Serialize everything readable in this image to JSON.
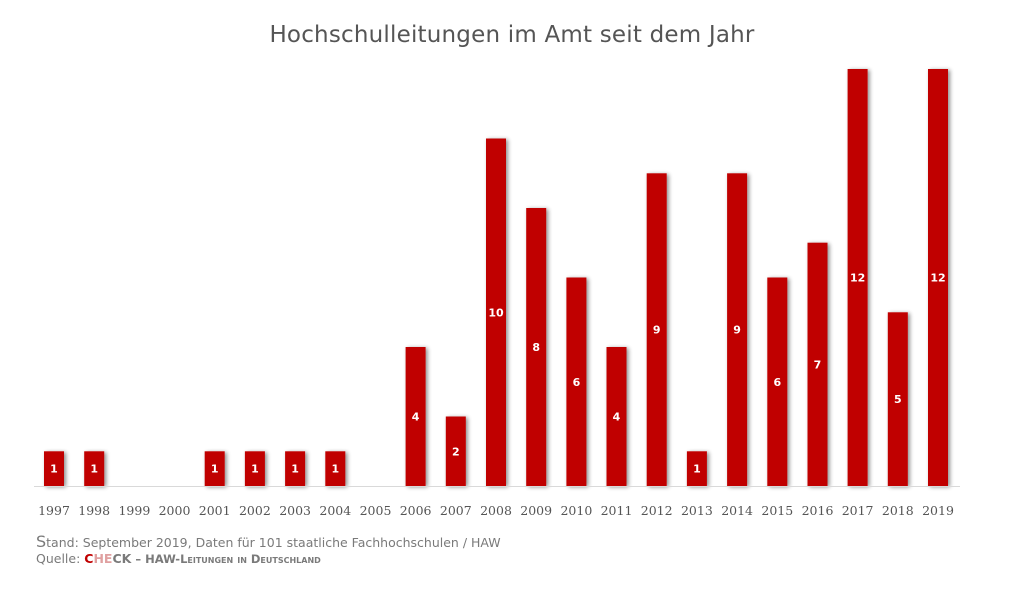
{
  "chart_data": {
    "type": "bar",
    "title": "Hochschulleitungen im Amt seit dem Jahr",
    "xlabel": "",
    "ylabel": "",
    "ylim": [
      0,
      12
    ],
    "grid": false,
    "categories": [
      "1997",
      "1998",
      "1999",
      "2000",
      "2001",
      "2002",
      "2003",
      "2004",
      "2005",
      "2006",
      "2007",
      "2008",
      "2009",
      "2010",
      "2011",
      "2012",
      "2013",
      "2014",
      "2015",
      "2016",
      "2017",
      "2018",
      "2019"
    ],
    "values": [
      1,
      1,
      0,
      0,
      1,
      1,
      1,
      1,
      0,
      4,
      2,
      10,
      8,
      6,
      4,
      9,
      1,
      9,
      6,
      7,
      12,
      5,
      12
    ],
    "bar_color": "#c00000",
    "label_color": "#ffffff"
  },
  "footer": {
    "stand_prefix": "S",
    "stand_rest": "tand: September 2019, Daten für 101 staatliche Fachhochschulen / HAW",
    "quelle_label": "Quelle: ",
    "brand_c": "C",
    "brand_he": "HE",
    "brand_ck": "CK",
    "source_rest": " – HAW-Leitungen in Deutschland"
  }
}
